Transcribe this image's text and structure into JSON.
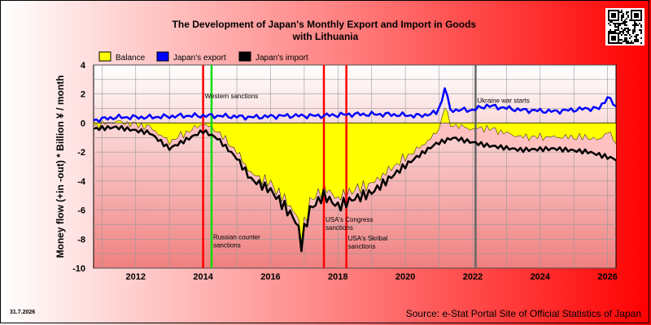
{
  "chart_data": {
    "type": "area",
    "title": "The Development of Japan's Monthly Export and Import in Goods with Lithuania",
    "ylabel": "Money flow (+in -out) * Billion ¥ / month",
    "xlabel": "",
    "ylim": [
      -10,
      4
    ],
    "xlim": [
      "2010-10",
      "2026-04"
    ],
    "y_ticks": [
      "4",
      "2",
      "0",
      "-2",
      "-4",
      "-6",
      "-8",
      "-10"
    ],
    "x_ticks": [
      "2012",
      "2014",
      "2016",
      "2018",
      "2020",
      "2022",
      "2024",
      "2026"
    ],
    "grid": true,
    "legend_position": "top",
    "legend": [
      {
        "name": "Balance",
        "color": "#ffff00"
      },
      {
        "name": "Japan's export",
        "color": "#0000ff"
      },
      {
        "name": "Japan's import",
        "color": "#000000"
      }
    ],
    "colors": {
      "balance_fill": "#ffff00",
      "gap_fill": "#ffc0c0",
      "export_line": "#0000ff",
      "import_line": "#000000",
      "event_red": "#ff0000",
      "event_green": "#00dd00",
      "event_gray": "#666666"
    },
    "events": [
      {
        "date": "2014-01",
        "label": "Western sanctions",
        "color": "#ff0000",
        "label_y": 1.7
      },
      {
        "date": "2014-04",
        "label": "Russian counter sanctions",
        "color": "#00dd00",
        "label_y": -8.0
      },
      {
        "date": "2017-08",
        "label": "USA's Congress sanctions",
        "color": "#ff0000",
        "label_y": -6.8
      },
      {
        "date": "2018-04",
        "label": "USA's Skribal sanctions",
        "color": "#ff0000",
        "label_y": -8.1
      },
      {
        "date": "2022-02",
        "label": "Ukraine war starts",
        "color": "#666666",
        "label_y": 1.4
      }
    ],
    "series_keypoints": {
      "export": [
        [
          "2010-10",
          0.2
        ],
        [
          "2011-06",
          0.4
        ],
        [
          "2012-06",
          0.4
        ],
        [
          "2013-06",
          0.5
        ],
        [
          "2014-06",
          0.5
        ],
        [
          "2015-06",
          0.4
        ],
        [
          "2016-06",
          0.5
        ],
        [
          "2017-06",
          0.5
        ],
        [
          "2018-06",
          0.6
        ],
        [
          "2019-06",
          0.6
        ],
        [
          "2020-06",
          0.5
        ],
        [
          "2020-12",
          0.7
        ],
        [
          "2021-02",
          1.5
        ],
        [
          "2021-03",
          2.5
        ],
        [
          "2021-05",
          0.9
        ],
        [
          "2022-01",
          0.9
        ],
        [
          "2022-06",
          1.2
        ],
        [
          "2023-06",
          0.9
        ],
        [
          "2024-06",
          0.8
        ],
        [
          "2025-06",
          1.0
        ],
        [
          "2025-10",
          1.0
        ],
        [
          "2026-01",
          1.8
        ],
        [
          "2026-04",
          1.1
        ]
      ],
      "import": [
        [
          "2010-10",
          -0.4
        ],
        [
          "2011-06",
          -0.3
        ],
        [
          "2012-06",
          -0.7
        ],
        [
          "2013-01",
          -1.8
        ],
        [
          "2013-06",
          -1.3
        ],
        [
          "2014-01",
          -0.6
        ],
        [
          "2014-06",
          -1.1
        ],
        [
          "2015-01",
          -2.5
        ],
        [
          "2015-06",
          -4.0
        ],
        [
          "2016-01",
          -4.8
        ],
        [
          "2016-06",
          -6.0
        ],
        [
          "2016-10",
          -7.0
        ],
        [
          "2016-12",
          -8.6
        ],
        [
          "2017-03",
          -6.2
        ],
        [
          "2017-08",
          -5.2
        ],
        [
          "2018-01",
          -6.0
        ],
        [
          "2018-06",
          -5.5
        ],
        [
          "2019-01",
          -5.0
        ],
        [
          "2019-06",
          -4.2
        ],
        [
          "2019-12",
          -3.2
        ],
        [
          "2020-06",
          -2.3
        ],
        [
          "2020-12",
          -1.5
        ],
        [
          "2021-06",
          -1.1
        ],
        [
          "2022-01",
          -1.4
        ],
        [
          "2022-06",
          -1.6
        ],
        [
          "2023-06",
          -1.9
        ],
        [
          "2024-06",
          -1.8
        ],
        [
          "2025-06",
          -2.0
        ],
        [
          "2025-10",
          -2.2
        ],
        [
          "2026-04",
          -2.5
        ]
      ]
    },
    "date_stamp": "31.7.2026",
    "source": "Source: e-Stat Portal Site of Official Statistics of Japan"
  }
}
